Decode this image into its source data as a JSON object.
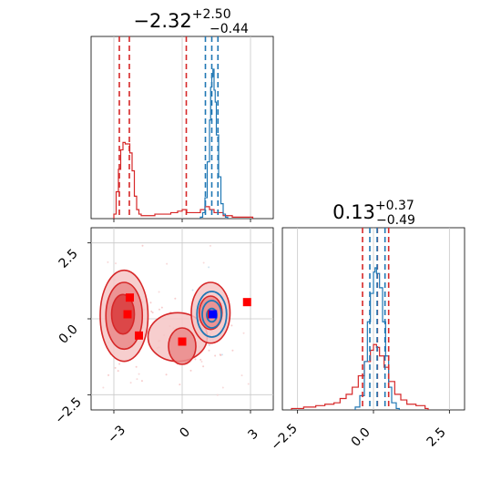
{
  "chart_data": [
    {
      "type": "histogram",
      "panel": "marginal-param-1",
      "title": {
        "value": "−2.32",
        "plus": "+2.50",
        "minus": "−0.44"
      },
      "x_range": [
        -4.0,
        4.0
      ],
      "grid": true,
      "series": [
        {
          "color": "#d62728",
          "bins": [
            {
              "x": -3.0,
              "h": 0.03
            },
            {
              "x": -2.9,
              "h": 0.18
            },
            {
              "x": -2.8,
              "h": 0.33
            },
            {
              "x": -2.7,
              "h": 0.46
            },
            {
              "x": -2.6,
              "h": 0.51
            },
            {
              "x": -2.5,
              "h": 0.5
            },
            {
              "x": -2.4,
              "h": 0.5
            },
            {
              "x": -2.3,
              "h": 0.44
            },
            {
              "x": -2.2,
              "h": 0.32
            },
            {
              "x": -2.1,
              "h": 0.15
            },
            {
              "x": -2.0,
              "h": 0.06
            },
            {
              "x": -1.9,
              "h": 0.03
            },
            {
              "x": -1.8,
              "h": 0.02
            },
            {
              "x": -1.5,
              "h": 0.02
            },
            {
              "x": -1.2,
              "h": 0.03
            },
            {
              "x": -0.9,
              "h": 0.03
            },
            {
              "x": -0.5,
              "h": 0.04
            },
            {
              "x": -0.2,
              "h": 0.05
            },
            {
              "x": 0.0,
              "h": 0.06
            },
            {
              "x": 0.2,
              "h": 0.04
            },
            {
              "x": 0.5,
              "h": 0.04
            },
            {
              "x": 0.8,
              "h": 0.06
            },
            {
              "x": 1.0,
              "h": 0.08
            },
            {
              "x": 1.2,
              "h": 0.06
            },
            {
              "x": 1.4,
              "h": 0.04
            },
            {
              "x": 1.6,
              "h": 0.04
            },
            {
              "x": 1.8,
              "h": 0.02
            },
            {
              "x": 2.2,
              "h": 0.01
            },
            {
              "x": 3.0,
              "h": 0.01
            }
          ],
          "quantiles": [
            -2.76,
            -2.32,
            0.18
          ]
        },
        {
          "color": "#1f77b4",
          "bins": [
            {
              "x": 0.8,
              "h": 0.01
            },
            {
              "x": 0.9,
              "h": 0.04
            },
            {
              "x": 1.0,
              "h": 0.14
            },
            {
              "x": 1.1,
              "h": 0.38
            },
            {
              "x": 1.2,
              "h": 0.66
            },
            {
              "x": 1.25,
              "h": 0.88
            },
            {
              "x": 1.3,
              "h": 0.95
            },
            {
              "x": 1.35,
              "h": 1.0
            },
            {
              "x": 1.4,
              "h": 0.86
            },
            {
              "x": 1.45,
              "h": 0.78
            },
            {
              "x": 1.5,
              "h": 0.56
            },
            {
              "x": 1.6,
              "h": 0.28
            },
            {
              "x": 1.7,
              "h": 0.1
            },
            {
              "x": 1.8,
              "h": 0.03
            },
            {
              "x": 1.9,
              "h": 0.01
            }
          ],
          "quantiles": [
            1.02,
            1.3,
            1.57
          ]
        }
      ]
    },
    {
      "type": "histogram",
      "panel": "marginal-param-2",
      "title": {
        "value": "0.13",
        "plus": "+0.37",
        "minus": "−0.49"
      },
      "x_range": [
        -3.0,
        3.0
      ],
      "x_ticks": [
        "−2.5",
        "0.0",
        "2.5"
      ],
      "grid": true,
      "series": [
        {
          "color": "#d62728",
          "bins": [
            {
              "x": -2.7,
              "h": 0.01
            },
            {
              "x": -2.3,
              "h": 0.02
            },
            {
              "x": -1.9,
              "h": 0.03
            },
            {
              "x": -1.6,
              "h": 0.04
            },
            {
              "x": -1.3,
              "h": 0.05
            },
            {
              "x": -1.1,
              "h": 0.08
            },
            {
              "x": -0.9,
              "h": 0.11
            },
            {
              "x": -0.7,
              "h": 0.16
            },
            {
              "x": -0.5,
              "h": 0.24
            },
            {
              "x": -0.3,
              "h": 0.34
            },
            {
              "x": -0.1,
              "h": 0.42
            },
            {
              "x": 0.0,
              "h": 0.46
            },
            {
              "x": 0.1,
              "h": 0.44
            },
            {
              "x": 0.2,
              "h": 0.38
            },
            {
              "x": 0.35,
              "h": 0.3
            },
            {
              "x": 0.5,
              "h": 0.2
            },
            {
              "x": 0.7,
              "h": 0.11
            },
            {
              "x": 0.9,
              "h": 0.07
            },
            {
              "x": 1.1,
              "h": 0.04
            },
            {
              "x": 1.4,
              "h": 0.03
            },
            {
              "x": 1.7,
              "h": 0.01
            }
          ],
          "quantiles": [
            -0.36,
            0.13,
            0.5
          ]
        },
        {
          "color": "#1f77b4",
          "bins": [
            {
              "x": -0.6,
              "h": 0.02
            },
            {
              "x": -0.45,
              "h": 0.1
            },
            {
              "x": -0.3,
              "h": 0.34
            },
            {
              "x": -0.2,
              "h": 0.62
            },
            {
              "x": -0.1,
              "h": 0.82
            },
            {
              "x": 0.0,
              "h": 0.97
            },
            {
              "x": 0.05,
              "h": 1.0
            },
            {
              "x": 0.1,
              "h": 0.96
            },
            {
              "x": 0.2,
              "h": 0.86
            },
            {
              "x": 0.3,
              "h": 0.62
            },
            {
              "x": 0.4,
              "h": 0.38
            },
            {
              "x": 0.5,
              "h": 0.16
            },
            {
              "x": 0.6,
              "h": 0.05
            },
            {
              "x": 0.75,
              "h": 0.01
            }
          ],
          "quantiles": [
            -0.12,
            0.12,
            0.38
          ]
        }
      ]
    },
    {
      "type": "scatter",
      "panel": "joint-param-1-vs-param-2",
      "x_range": [
        -4.0,
        4.0
      ],
      "y_range": [
        -3.0,
        3.0
      ],
      "x_ticks": [
        "−3",
        "0",
        "3"
      ],
      "y_ticks": [
        "−2.5",
        "0.0",
        "2.5"
      ],
      "grid": true,
      "red_contours": [
        {
          "level": 1,
          "cx": -2.55,
          "cy": 0.1,
          "rx": 1.05,
          "ry": 1.5
        },
        {
          "level": 2,
          "cx": -2.55,
          "cy": 0.1,
          "rx": 0.8,
          "ry": 1.1
        },
        {
          "level": 3,
          "cx": -2.6,
          "cy": 0.15,
          "rx": 0.5,
          "ry": 0.65
        },
        {
          "level": 1,
          "cx": -0.2,
          "cy": -0.6,
          "rx": 1.3,
          "ry": 0.8
        },
        {
          "level": 2,
          "cx": 0.0,
          "cy": -0.9,
          "rx": 0.6,
          "ry": 0.6
        },
        {
          "level": 1,
          "cx": 1.25,
          "cy": 0.2,
          "rx": 0.85,
          "ry": 1.0
        },
        {
          "level": 2,
          "cx": 1.25,
          "cy": 0.2,
          "rx": 0.5,
          "ry": 0.55
        }
      ],
      "blue_contours": [
        {
          "cx": 1.3,
          "cy": 0.15,
          "rx": 0.65,
          "ry": 0.75
        },
        {
          "cx": 1.3,
          "cy": 0.15,
          "rx": 0.42,
          "ry": 0.45
        },
        {
          "cx": 1.3,
          "cy": 0.12,
          "rx": 0.22,
          "ry": 0.22
        }
      ],
      "red_markers": [
        {
          "x": -2.3,
          "y": 0.7
        },
        {
          "x": -2.4,
          "y": 0.15
        },
        {
          "x": -1.9,
          "y": -0.55
        },
        {
          "x": 0.0,
          "y": -0.75
        },
        {
          "x": 1.3,
          "y": 0.15
        },
        {
          "x": 2.85,
          "y": 0.55
        }
      ],
      "blue_markers": [
        {
          "x": 1.35,
          "y": 0.15
        }
      ]
    }
  ]
}
